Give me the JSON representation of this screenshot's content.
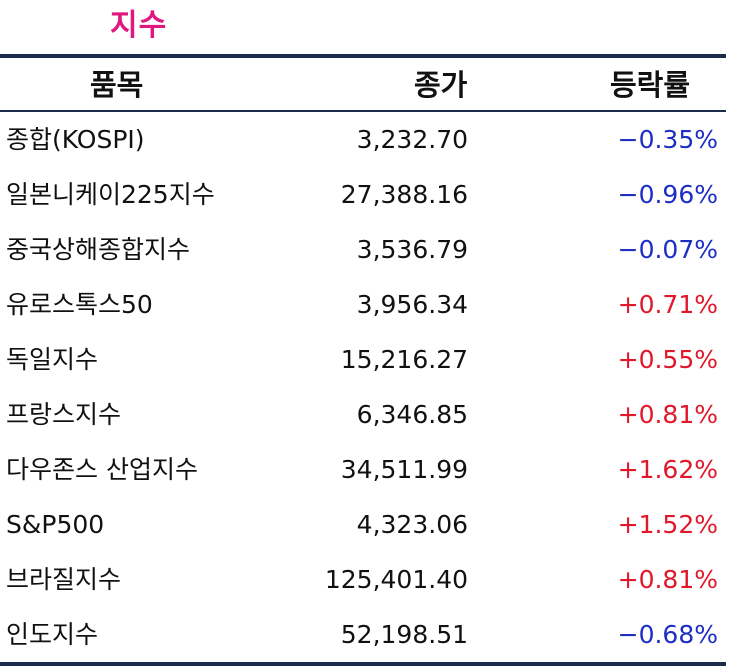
{
  "title": "지수",
  "headers": {
    "name": "품목",
    "price": "종가",
    "change": "등락률"
  },
  "rows": [
    {
      "name": "종합(KOSPI)",
      "price": "3,232.70",
      "change": "−0.35%",
      "direction": "down"
    },
    {
      "name": "일본니케이225지수",
      "price": "27,388.16",
      "change": "−0.96%",
      "direction": "down"
    },
    {
      "name": "중국상해종합지수",
      "price": "3,536.79",
      "change": "−0.07%",
      "direction": "down"
    },
    {
      "name": "유로스톡스50",
      "price": "3,956.34",
      "change": "+0.71%",
      "direction": "up"
    },
    {
      "name": "독일지수",
      "price": "15,216.27",
      "change": "+0.55%",
      "direction": "up"
    },
    {
      "name": "프랑스지수",
      "price": "6,346.85",
      "change": "+0.81%",
      "direction": "up"
    },
    {
      "name": "다우존스 산업지수",
      "price": "34,511.99",
      "change": "+1.62%",
      "direction": "up"
    },
    {
      "name": "S&P500",
      "price": "4,323.06",
      "change": "+1.52%",
      "direction": "up"
    },
    {
      "name": "브라질지수",
      "price": "125,401.40",
      "change": "+0.81%",
      "direction": "up"
    },
    {
      "name": "인도지수",
      "price": "52,198.51",
      "change": "−0.68%",
      "direction": "down"
    }
  ],
  "colors": {
    "title": "#e0177f",
    "up": "#e0182a",
    "down": "#1d2ec4",
    "rule": "#1c2b4a"
  }
}
